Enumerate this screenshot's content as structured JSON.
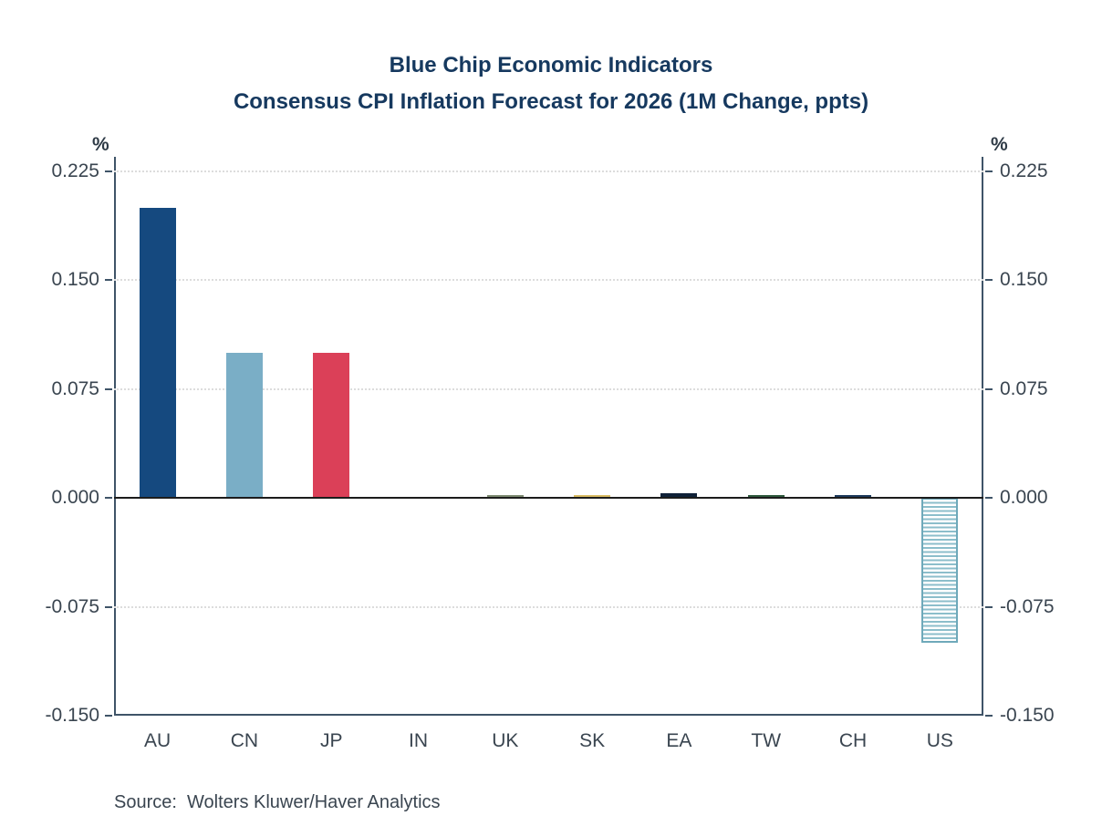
{
  "title": {
    "line1": "Blue Chip Economic Indicators",
    "line2": "Consensus CPI Inflation Forecast for 2026 (1M Change, ppts)"
  },
  "axis": {
    "unit_label_left": "%",
    "unit_label_right": "%",
    "tick_values": [
      0.225,
      0.15,
      0.075,
      0.0,
      -0.075,
      -0.15
    ],
    "tick_labels": [
      "0.225",
      "0.150",
      "0.075",
      "0.000",
      "-0.075",
      "-0.150"
    ]
  },
  "chart_data": {
    "type": "bar",
    "title": "Blue Chip Economic Indicators — Consensus CPI Inflation Forecast for 2026 (1M Change, ppts)",
    "xlabel": "",
    "ylabel": "%",
    "ylim": [
      -0.15,
      0.225
    ],
    "grid": "horizontal-dotted",
    "gridline_values": [
      0.225,
      0.15,
      0.075,
      -0.075
    ],
    "zero_line": true,
    "legend_position": "none",
    "categories": [
      "AU",
      "CN",
      "JP",
      "IN",
      "UK",
      "SK",
      "EA",
      "TW",
      "CH",
      "US"
    ],
    "values": [
      0.2,
      0.1,
      0.1,
      0.001,
      0.002,
      0.002,
      0.003,
      0.002,
      0.002,
      -0.1
    ],
    "bar_colors": [
      "#15497F",
      "#7AAEC6",
      "#DB4058",
      "#8B8E91",
      "#7E8B72",
      "#D9BC64",
      "#0F2138",
      "#2F5A3D",
      "#1D3A5C",
      "#8CBECB"
    ],
    "bar_patterns": [
      "solid",
      "solid",
      "solid",
      "solid",
      "solid",
      "solid",
      "solid",
      "solid",
      "solid",
      "horizontal-stripes"
    ]
  },
  "source": {
    "text": "Source:  Wolters Kluwer/Haver Analytics"
  },
  "colors": {
    "title_text": "#16395f",
    "axis_line": "#3f5468",
    "tick_text": "#3a4550",
    "gridline": "#dcdcdc",
    "zero_line": "#1c1c1c",
    "stripe_border": "#6FA9BA"
  }
}
